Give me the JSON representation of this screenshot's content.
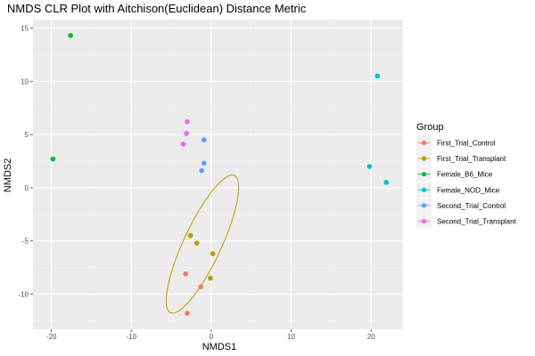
{
  "chart_data": {
    "type": "scatter",
    "title": "NMDS CLR Plot with Aitchison(Euclidean) Distance Metric",
    "xlabel": "NMDS1",
    "ylabel": "NMDS2",
    "xlim": [
      -22.3,
      24.0
    ],
    "ylim": [
      -13.3,
      15.8
    ],
    "xticks": [
      -20,
      -10,
      0,
      10,
      20
    ],
    "yticks": [
      -10,
      -5,
      0,
      5,
      10,
      15
    ],
    "grid": true,
    "legend": {
      "title": "Group",
      "position": "right"
    },
    "series": [
      {
        "name": "First_Trial_Control",
        "color": "#F8766D",
        "points": [
          {
            "x": -3.2,
            "y": -8.1
          },
          {
            "x": -1.3,
            "y": -9.3
          },
          {
            "x": -3.0,
            "y": -11.8
          }
        ]
      },
      {
        "name": "First_Trial_Transplant",
        "color": "#B79F00",
        "points": [
          {
            "x": -2.6,
            "y": -4.5
          },
          {
            "x": -1.8,
            "y": -5.2
          },
          {
            "x": 0.2,
            "y": -6.2
          },
          {
            "x": -0.1,
            "y": -8.5
          }
        ]
      },
      {
        "name": "Female_B6_Mice",
        "color": "#00BA38",
        "points": [
          {
            "x": -17.6,
            "y": 14.3
          },
          {
            "x": -19.8,
            "y": 2.7
          }
        ]
      },
      {
        "name": "Female_NOD_Mice",
        "color": "#00BFC4",
        "points": [
          {
            "x": 20.8,
            "y": 10.5
          },
          {
            "x": 19.8,
            "y": 2.0
          },
          {
            "x": 21.9,
            "y": 0.5
          }
        ]
      },
      {
        "name": "Second_Trial_Control",
        "color": "#619CFF",
        "points": [
          {
            "x": -0.9,
            "y": 4.5
          },
          {
            "x": -0.9,
            "y": 2.3
          },
          {
            "x": -1.2,
            "y": 1.6
          }
        ]
      },
      {
        "name": "Second_Trial_Transplant",
        "color": "#F564E3",
        "points": [
          {
            "x": -3.0,
            "y": 6.2
          },
          {
            "x": -3.1,
            "y": 5.1
          },
          {
            "x": -3.5,
            "y": 4.1
          }
        ]
      }
    ],
    "ellipse": {
      "series": "First_Trial_Transplant",
      "color": "#B79F00",
      "center": {
        "x": -1.1,
        "y": -5.3
      },
      "semi_major": 7.6,
      "semi_minor": 2.2,
      "angle_deg": 57
    }
  }
}
